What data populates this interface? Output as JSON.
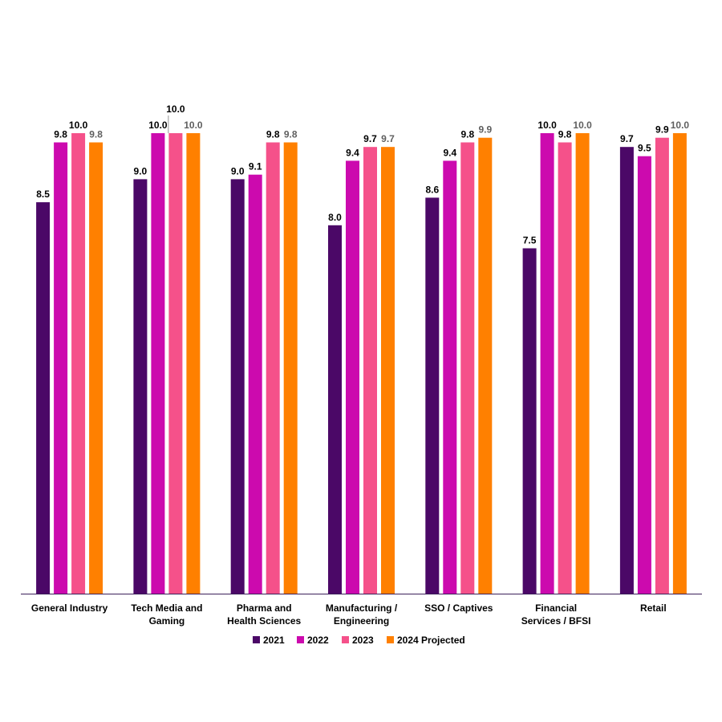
{
  "chart_data": {
    "type": "bar",
    "title": "",
    "xlabel": "",
    "ylabel": "",
    "ylim": [
      0,
      10
    ],
    "grid": false,
    "legend_position": "bottom",
    "categories": [
      [
        "General Industry"
      ],
      [
        "Tech Media and",
        "Gaming"
      ],
      [
        "Pharma and",
        "Health Sciences"
      ],
      [
        "Manufacturing /",
        "Engineering"
      ],
      [
        "SSO / Captives"
      ],
      [
        "Financial",
        "Services / BFSI"
      ],
      [
        "Retail"
      ]
    ],
    "series": [
      {
        "name": "2021",
        "color": "#4B0867",
        "label_color": "#000000",
        "values": [
          8.5,
          9.0,
          9.0,
          8.0,
          8.6,
          7.5,
          9.7
        ],
        "labels": [
          "8.5",
          "9.0",
          "9.0",
          "8.0",
          "8.6",
          "7.5",
          "9.7"
        ]
      },
      {
        "name": "2022",
        "color": "#CC0AAE",
        "label_color": "#000000",
        "values": [
          9.8,
          10.0,
          9.1,
          9.4,
          9.4,
          10.0,
          9.5
        ],
        "labels": [
          "9.8",
          "10.0",
          "9.1",
          "9.4",
          "9.4",
          "10.0",
          "9.5"
        ]
      },
      {
        "name": "2023",
        "color": "#F5518A",
        "label_color": "#000000",
        "values": [
          10.0,
          10.0,
          9.8,
          9.7,
          9.8,
          9.8,
          9.9
        ],
        "labels": [
          "10.0",
          "10.0",
          "9.8",
          "9.7",
          "9.8",
          "9.8",
          "9.9"
        ]
      },
      {
        "name": "2024 Projected",
        "color": "#FF8000",
        "label_color": "#5F5F5F",
        "values": [
          9.8,
          10.0,
          9.8,
          9.7,
          9.9,
          10.0,
          10.0
        ],
        "labels": [
          "9.8",
          "10.0",
          "9.8",
          "9.7",
          "9.9",
          "10.0",
          "10.0"
        ]
      }
    ],
    "axis_color": "#3B1F5A"
  }
}
